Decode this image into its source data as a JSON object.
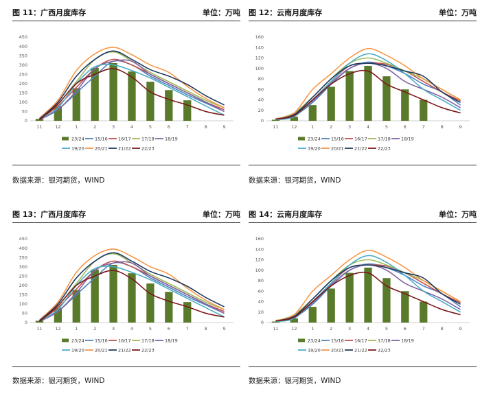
{
  "colors": {
    "23/24": "#5a7a2b",
    "15/16": "#4f81bd",
    "16/17": "#c0504d",
    "17/18": "#9bbb59",
    "18/19": "#8064a2",
    "19/20": "#4bacc6",
    "20/21": "#f79646",
    "21/22": "#1f3a5f",
    "22/23": "#7b1a1a"
  },
  "panels": [
    {
      "title": "图 11：广西月度库存",
      "unit": "单位：万吨",
      "source": "数据来源：银河期货，WIND",
      "chart_data": {
        "type": "bar+line",
        "categories": [
          "11",
          "12",
          "1",
          "2",
          "3",
          "4",
          "5",
          "6",
          "7",
          "8",
          "9"
        ],
        "ylim": [
          0,
          450
        ],
        "yticks": [
          0,
          50,
          100,
          150,
          200,
          250,
          300,
          350,
          400,
          450
        ],
        "legend": "bottom",
        "bar_series": {
          "name": "23/24",
          "values": [
            10,
            80,
            175,
            285,
            310,
            265,
            210,
            165,
            110,
            null,
            null
          ]
        },
        "series": [
          {
            "name": "15/16",
            "values": [
              5,
              60,
              150,
              240,
              320,
              300,
              240,
              190,
              140,
              95,
              50
            ]
          },
          {
            "name": "16/17",
            "values": [
              8,
              80,
              180,
              280,
              330,
              300,
              250,
              200,
              150,
              100,
              60
            ]
          },
          {
            "name": "17/18",
            "values": [
              10,
              90,
              210,
              330,
              370,
              320,
              260,
              210,
              160,
              110,
              70
            ]
          },
          {
            "name": "18/19",
            "values": [
              5,
              60,
              160,
              280,
              320,
              320,
              250,
              200,
              150,
              100,
              50
            ]
          },
          {
            "name": "19/20",
            "values": [
              8,
              70,
              200,
              290,
              300,
              270,
              230,
              180,
              130,
              80,
              30
            ]
          },
          {
            "name": "20/21",
            "values": [
              15,
              110,
              270,
              360,
              395,
              355,
              300,
              260,
              185,
              120,
              70
            ]
          },
          {
            "name": "21/22",
            "values": [
              10,
              100,
              240,
              330,
              375,
              330,
              275,
              240,
              195,
              135,
              85
            ]
          },
          {
            "name": "22/23",
            "values": [
              5,
              90,
              200,
              250,
              280,
              235,
              155,
              115,
              85,
              50,
              30
            ]
          }
        ]
      }
    },
    {
      "title": "图 12：云南月度库存",
      "unit": "单位：万吨",
      "source": "数据来源：银河期货，WIND",
      "chart_data": {
        "type": "bar+line",
        "categories": [
          "11",
          "12",
          "1",
          "2",
          "3",
          "4",
          "5",
          "6",
          "7",
          "8",
          "9"
        ],
        "ylim": [
          0,
          160
        ],
        "yticks": [
          0,
          20,
          40,
          60,
          80,
          100,
          120,
          140,
          160
        ],
        "legend": "bottom",
        "bar_series": {
          "name": "23/24",
          "values": [
            2,
            8,
            30,
            65,
            95,
            105,
            85,
            60,
            40,
            null,
            null
          ]
        },
        "series": [
          {
            "name": "15/16",
            "values": [
              3,
              10,
              35,
              70,
              100,
              112,
              105,
              90,
              70,
              55,
              30
            ]
          },
          {
            "name": "16/17",
            "values": [
              3,
              12,
              40,
              75,
              105,
              110,
              108,
              95,
              75,
              55,
              38
            ]
          },
          {
            "name": "17/18",
            "values": [
              3,
              15,
              45,
              80,
              110,
              120,
              110,
              95,
              80,
              60,
              40
            ]
          },
          {
            "name": "18/19",
            "values": [
              2,
              10,
              38,
              72,
              100,
              110,
              100,
              75,
              60,
              45,
              25
            ]
          },
          {
            "name": "19/20",
            "values": [
              2,
              8,
              40,
              75,
              110,
              128,
              115,
              90,
              60,
              40,
              20
            ]
          },
          {
            "name": "20/21",
            "values": [
              4,
              15,
              60,
              90,
              120,
              138,
              125,
              105,
              80,
              60,
              40
            ]
          },
          {
            "name": "21/22",
            "values": [
              3,
              12,
              45,
              80,
              105,
              110,
              105,
              95,
              85,
              55,
              35
            ]
          },
          {
            "name": "22/23",
            "values": [
              3,
              10,
              40,
              70,
              90,
              95,
              70,
              55,
              40,
              25,
              15
            ]
          }
        ]
      }
    },
    {
      "title": "图 13：广西月度库存",
      "unit": "单位：万吨",
      "source": "数据来源：银河期货，WIND",
      "chart_data": {
        "type": "bar+line",
        "categories": [
          "11",
          "12",
          "1",
          "2",
          "3",
          "4",
          "5",
          "6",
          "7",
          "8",
          "9"
        ],
        "ylim": [
          0,
          450
        ],
        "yticks": [
          0,
          50,
          100,
          150,
          200,
          250,
          300,
          350,
          400,
          450
        ],
        "legend": "bottom",
        "bar_series": {
          "name": "23/24",
          "values": [
            10,
            80,
            175,
            285,
            310,
            265,
            210,
            165,
            110,
            null,
            null
          ]
        },
        "series": [
          {
            "name": "15/16",
            "values": [
              5,
              60,
              150,
              240,
              320,
              300,
              240,
              190,
              140,
              95,
              50
            ]
          },
          {
            "name": "16/17",
            "values": [
              8,
              80,
              180,
              280,
              330,
              300,
              250,
              200,
              150,
              100,
              60
            ]
          },
          {
            "name": "17/18",
            "values": [
              10,
              90,
              210,
              330,
              370,
              320,
              260,
              210,
              160,
              110,
              70
            ]
          },
          {
            "name": "18/19",
            "values": [
              5,
              60,
              160,
              280,
              320,
              320,
              250,
              200,
              150,
              100,
              50
            ]
          },
          {
            "name": "19/20",
            "values": [
              8,
              70,
              200,
              290,
              300,
              270,
              230,
              180,
              130,
              80,
              30
            ]
          },
          {
            "name": "20/21",
            "values": [
              15,
              110,
              270,
              360,
              395,
              355,
              300,
              260,
              185,
              120,
              70
            ]
          },
          {
            "name": "21/22",
            "values": [
              10,
              100,
              240,
              330,
              375,
              330,
              275,
              240,
              195,
              135,
              85
            ]
          },
          {
            "name": "22/23",
            "values": [
              5,
              90,
              200,
              250,
              280,
              235,
              155,
              115,
              85,
              50,
              30
            ]
          }
        ]
      }
    },
    {
      "title": "图 14：云南月度库存",
      "unit": "单位：万吨",
      "source": "数据来源：银河期货，WIND",
      "chart_data": {
        "type": "bar+line",
        "categories": [
          "11",
          "12",
          "1",
          "2",
          "3",
          "4",
          "5",
          "6",
          "7",
          "8",
          "9"
        ],
        "ylim": [
          0,
          160
        ],
        "yticks": [
          0,
          20,
          40,
          60,
          80,
          100,
          120,
          140,
          160
        ],
        "legend": "bottom",
        "bar_series": {
          "name": "23/24",
          "values": [
            2,
            8,
            30,
            65,
            95,
            105,
            85,
            60,
            40,
            null,
            null
          ]
        },
        "series": [
          {
            "name": "15/16",
            "values": [
              3,
              10,
              35,
              70,
              100,
              112,
              105,
              90,
              70,
              55,
              30
            ]
          },
          {
            "name": "16/17",
            "values": [
              3,
              12,
              40,
              75,
              105,
              110,
              108,
              95,
              75,
              55,
              38
            ]
          },
          {
            "name": "17/18",
            "values": [
              3,
              15,
              45,
              80,
              110,
              120,
              110,
              95,
              80,
              60,
              40
            ]
          },
          {
            "name": "18/19",
            "values": [
              2,
              10,
              38,
              72,
              100,
              110,
              100,
              75,
              60,
              45,
              25
            ]
          },
          {
            "name": "19/20",
            "values": [
              2,
              8,
              40,
              75,
              110,
              128,
              115,
              90,
              60,
              40,
              20
            ]
          },
          {
            "name": "20/21",
            "values": [
              4,
              15,
              60,
              90,
              120,
              138,
              125,
              105,
              80,
              60,
              40
            ]
          },
          {
            "name": "21/22",
            "values": [
              3,
              12,
              45,
              80,
              105,
              110,
              105,
              95,
              85,
              55,
              35
            ]
          },
          {
            "name": "22/23",
            "values": [
              3,
              10,
              40,
              70,
              90,
              95,
              70,
              55,
              40,
              25,
              15
            ]
          }
        ]
      }
    }
  ]
}
